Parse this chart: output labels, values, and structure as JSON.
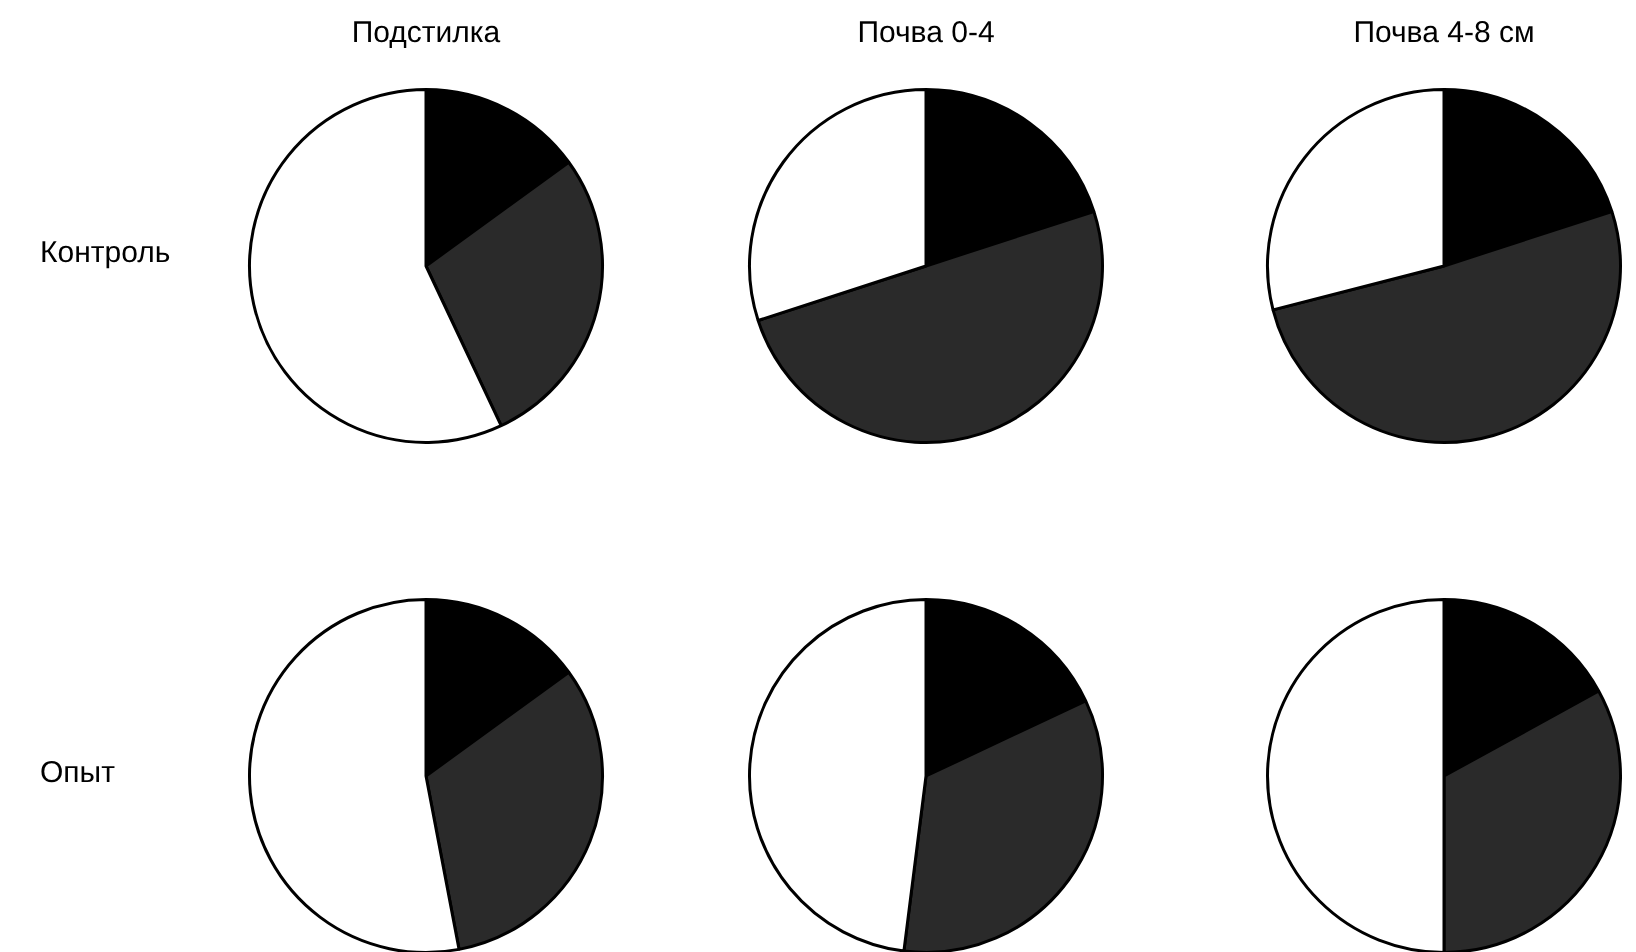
{
  "chart_data": [
    {
      "type": "pie",
      "title": "Подстилка",
      "ylabel": "Контроль",
      "categories": [
        null,
        null,
        null
      ],
      "values": [
        15,
        28,
        57
      ],
      "colors": [
        "#000000",
        "#2a2a2a",
        "#ffffff"
      ],
      "legend": false
    },
    {
      "type": "pie",
      "title": "Почва 0-4",
      "categories": [
        null,
        null,
        null
      ],
      "values": [
        20,
        50,
        30
      ],
      "colors": [
        "#000000",
        "#2a2a2a",
        "#ffffff"
      ],
      "legend": false
    },
    {
      "type": "pie",
      "title": "Почва 4-8 см",
      "categories": [
        null,
        null,
        null
      ],
      "values": [
        20,
        51,
        29
      ],
      "colors": [
        "#000000",
        "#2a2a2a",
        "#ffffff"
      ],
      "legend": false
    },
    {
      "type": "pie",
      "ylabel": "Опыт",
      "categories": [
        null,
        null,
        null
      ],
      "values": [
        15,
        32,
        53
      ],
      "colors": [
        "#000000",
        "#2a2a2a",
        "#ffffff"
      ],
      "legend": false
    },
    {
      "type": "pie",
      "categories": [
        null,
        null,
        null
      ],
      "values": [
        18,
        34,
        48
      ],
      "colors": [
        "#000000",
        "#2a2a2a",
        "#ffffff"
      ],
      "legend": false
    },
    {
      "type": "pie",
      "categories": [
        null,
        null,
        null
      ],
      "values": [
        17,
        33,
        50
      ],
      "colors": [
        "#000000",
        "#2a2a2a",
        "#ffffff"
      ],
      "legend": false
    }
  ]
}
